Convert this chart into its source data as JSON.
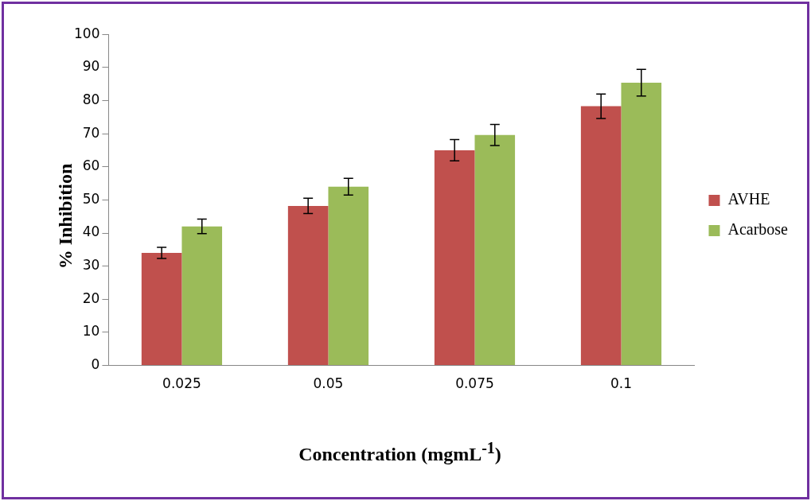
{
  "chart_data": {
    "type": "bar",
    "xlabel": "Concentration (mgmL$^{-1}$)",
    "ylabel": "% Inhibition",
    "categories": [
      "0.025",
      "0.05",
      "0.075",
      "0.1"
    ],
    "series": [
      {
        "name": "AVHE",
        "color": "#c0504d",
        "values": [
          34,
          48.2,
          65,
          78.3
        ],
        "errors": [
          1.7,
          2.3,
          3.2,
          3.7
        ]
      },
      {
        "name": "Acarbose",
        "color": "#9bbb59",
        "values": [
          42,
          54,
          69.6,
          85.4
        ],
        "errors": [
          2.2,
          2.5,
          3.2,
          4
        ]
      }
    ],
    "ylim": [
      0,
      100
    ],
    "yticks": [
      0,
      10,
      20,
      30,
      40,
      50,
      60,
      70,
      80,
      90,
      100
    ],
    "grid": false,
    "legend": "right"
  }
}
